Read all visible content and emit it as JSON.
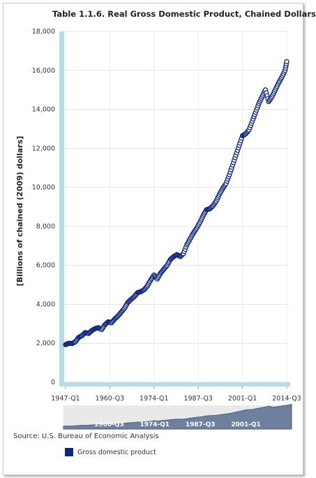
{
  "title": "Table 1.1.6. Real Gross Domestic Product, Chained Dollars",
  "source": "Source: U.S. Bureau of Economic Analysis",
  "chart_data": {
    "type": "line",
    "title": "Table 1.1.6. Real Gross Domestic Product, Chained Dollars",
    "xlabel": "",
    "ylabel": "[Billions of chained (2009) dollars]",
    "ylim": [
      0,
      18000
    ],
    "yticks": [
      "0",
      "2,000",
      "4,000",
      "6,000",
      "8,000",
      "10,000",
      "12,000",
      "14,000",
      "16,000",
      "18,000"
    ],
    "xticks": [
      "1947-Q1",
      "1960-Q3",
      "1974-Q1",
      "1987-Q3",
      "2001-Q1",
      "2014-Q3"
    ],
    "navigator_ticks": [
      "1960-Q3",
      "1974-Q1",
      "1987-Q3",
      "2001-Q1"
    ],
    "grid": true,
    "legend_position": "bottom-left",
    "x_range": [
      "1947-Q1",
      "2014-Q3"
    ],
    "series": [
      {
        "name": "Gross domestic product",
        "color": "#10287a",
        "points": [
          [
            "1947-Q1",
            1930
          ],
          [
            "1948-Q1",
            2000
          ],
          [
            "1949-Q1",
            1990
          ],
          [
            "1950-Q1",
            2080
          ],
          [
            "1951-Q1",
            2300
          ],
          [
            "1952-Q1",
            2390
          ],
          [
            "1953-Q1",
            2550
          ],
          [
            "1954-Q1",
            2500
          ],
          [
            "1955-Q1",
            2650
          ],
          [
            "1956-Q1",
            2750
          ],
          [
            "1957-Q1",
            2800
          ],
          [
            "1958-Q1",
            2700
          ],
          [
            "1959-Q1",
            2950
          ],
          [
            "1960-Q1",
            3100
          ],
          [
            "1961-Q1",
            3050
          ],
          [
            "1962-Q1",
            3250
          ],
          [
            "1963-Q1",
            3400
          ],
          [
            "1964-Q1",
            3600
          ],
          [
            "1965-Q1",
            3800
          ],
          [
            "1966-Q1",
            4100
          ],
          [
            "1967-Q1",
            4250
          ],
          [
            "1968-Q1",
            4400
          ],
          [
            "1969-Q1",
            4600
          ],
          [
            "1970-Q1",
            4650
          ],
          [
            "1971-Q1",
            4750
          ],
          [
            "1972-Q1",
            4950
          ],
          [
            "1973-Q1",
            5250
          ],
          [
            "1974-Q1",
            5500
          ],
          [
            "1975-Q1",
            5300
          ],
          [
            "1976-Q1",
            5600
          ],
          [
            "1977-Q1",
            5800
          ],
          [
            "1978-Q1",
            6000
          ],
          [
            "1979-Q1",
            6300
          ],
          [
            "1980-Q1",
            6450
          ],
          [
            "1981-Q1",
            6550
          ],
          [
            "1982-Q1",
            6450
          ],
          [
            "1983-Q1",
            6600
          ],
          [
            "1984-Q1",
            7050
          ],
          [
            "1985-Q1",
            7350
          ],
          [
            "1986-Q1",
            7650
          ],
          [
            "1987-Q1",
            7900
          ],
          [
            "1988-Q1",
            8200
          ],
          [
            "1989-Q1",
            8550
          ],
          [
            "1990-Q1",
            8850
          ],
          [
            "1991-Q1",
            8900
          ],
          [
            "1992-Q1",
            9050
          ],
          [
            "1993-Q1",
            9300
          ],
          [
            "1994-Q1",
            9650
          ],
          [
            "1995-Q1",
            9950
          ],
          [
            "1996-Q1",
            10200
          ],
          [
            "1997-Q1",
            10650
          ],
          [
            "1998-Q1",
            11150
          ],
          [
            "1999-Q1",
            11650
          ],
          [
            "2000-Q1",
            12150
          ],
          [
            "2001-Q1",
            12650
          ],
          [
            "2002-Q1",
            12750
          ],
          [
            "2003-Q1",
            12950
          ],
          [
            "2004-Q1",
            13400
          ],
          [
            "2005-Q1",
            13850
          ],
          [
            "2006-Q1",
            14300
          ],
          [
            "2007-Q1",
            14650
          ],
          [
            "2008-Q1",
            15000
          ],
          [
            "2009-Q1",
            14400
          ],
          [
            "2010-Q1",
            14650
          ],
          [
            "2011-Q1",
            15000
          ],
          [
            "2012-Q1",
            15350
          ],
          [
            "2013-Q1",
            15650
          ],
          [
            "2014-Q1",
            16000
          ],
          [
            "2014-Q3",
            16450
          ]
        ]
      }
    ]
  }
}
